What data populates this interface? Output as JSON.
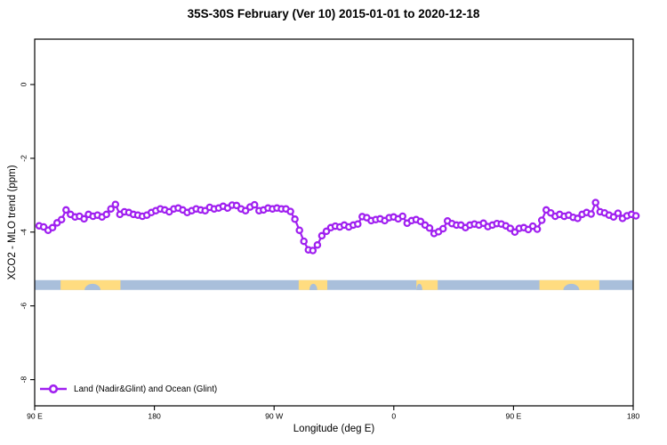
{
  "chart_data": {
    "type": "line",
    "title": "35S-30S February (Ver 10)  2015-01-01 to 2020-12-18",
    "xlabel": "Longitude (deg E)",
    "ylabel": "XCO2 - MLO trend (ppm)",
    "xlim": [
      90,
      540
    ],
    "ylim": [
      -8.71,
      1.23
    ],
    "grid": false,
    "legend_position": "bottom-left",
    "x_ticks": {
      "values": [
        90,
        180,
        270,
        360,
        450,
        540
      ],
      "labels": [
        "90 E",
        "180",
        "90 W",
        "0",
        "90 E",
        "180"
      ]
    },
    "y_ticks": {
      "values": [
        0,
        -2,
        -4,
        -6,
        -8
      ],
      "labels": [
        "0",
        "-2",
        "-4",
        "-6",
        "-8"
      ]
    },
    "colors": {
      "series": "#A020F0",
      "marker_fill": "#FFFFFF",
      "axis": "#000000",
      "ocean_band": "#A9BFDB",
      "land_band": "#FFDC80"
    },
    "map_band": {
      "description": "35S-30S latitude strip: ocean blue with yellow land patches",
      "ppm_top": -5.3,
      "ppm_bottom": -5.57,
      "land_patches": [
        {
          "name": "australia",
          "from": 109.5,
          "to": 154.5,
          "notches": [
            {
              "from": 127.5,
              "to": 139.5
            }
          ]
        },
        {
          "name": "south-america",
          "from": 288.5,
          "to": 310.0,
          "notches": [
            {
              "from": 296.5,
              "to": 302.5
            }
          ]
        },
        {
          "name": "africa",
          "from": 377.0,
          "to": 393.0,
          "notches": [
            {
              "from": 377.0,
              "to": 381.5
            }
          ]
        },
        {
          "name": "australia-repeat",
          "from": 469.5,
          "to": 514.5,
          "notches": [
            {
              "from": 487.5,
              "to": 499.5
            }
          ]
        }
      ]
    },
    "series": [
      {
        "name": "Land (Nadir&Glint) and Ocean (Glint)",
        "marker": "open-circle",
        "lon_start": 93.35,
        "lon_step": 3.374,
        "values": [
          -3.83,
          -3.86,
          -3.95,
          -3.88,
          -3.75,
          -3.66,
          -3.4,
          -3.52,
          -3.59,
          -3.57,
          -3.64,
          -3.52,
          -3.57,
          -3.54,
          -3.59,
          -3.52,
          -3.37,
          -3.25,
          -3.52,
          -3.45,
          -3.47,
          -3.52,
          -3.54,
          -3.57,
          -3.54,
          -3.47,
          -3.42,
          -3.37,
          -3.4,
          -3.45,
          -3.37,
          -3.35,
          -3.4,
          -3.47,
          -3.42,
          -3.37,
          -3.4,
          -3.42,
          -3.33,
          -3.37,
          -3.35,
          -3.3,
          -3.35,
          -3.27,
          -3.28,
          -3.37,
          -3.42,
          -3.32,
          -3.26,
          -3.42,
          -3.4,
          -3.35,
          -3.37,
          -3.35,
          -3.37,
          -3.37,
          -3.44,
          -3.65,
          -3.95,
          -4.25,
          -4.48,
          -4.5,
          -4.35,
          -4.1,
          -3.98,
          -3.88,
          -3.84,
          -3.86,
          -3.81,
          -3.86,
          -3.81,
          -3.78,
          -3.58,
          -3.61,
          -3.69,
          -3.66,
          -3.64,
          -3.69,
          -3.61,
          -3.59,
          -3.64,
          -3.57,
          -3.76,
          -3.69,
          -3.66,
          -3.71,
          -3.81,
          -3.89,
          -4.04,
          -3.99,
          -3.91,
          -3.7,
          -3.77,
          -3.81,
          -3.81,
          -3.88,
          -3.81,
          -3.78,
          -3.81,
          -3.76,
          -3.85,
          -3.81,
          -3.77,
          -3.78,
          -3.83,
          -3.9,
          -4.0,
          -3.9,
          -3.88,
          -3.93,
          -3.84,
          -3.92,
          -3.68,
          -3.4,
          -3.48,
          -3.57,
          -3.52,
          -3.57,
          -3.54,
          -3.6,
          -3.63,
          -3.52,
          -3.47,
          -3.51,
          -3.2,
          -3.45,
          -3.48,
          -3.54,
          -3.59,
          -3.49,
          -3.63,
          -3.56,
          -3.52,
          -3.56
        ]
      }
    ]
  }
}
